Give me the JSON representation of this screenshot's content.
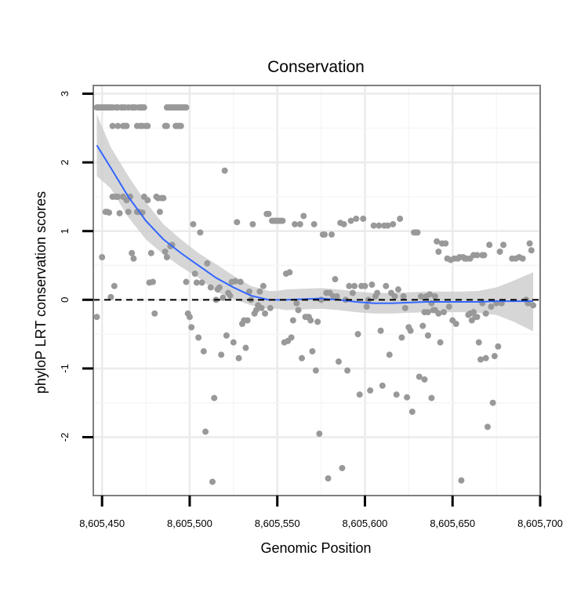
{
  "chart_data": {
    "type": "scatter",
    "title": "Conservation",
    "xlabel": "Genomic Position",
    "ylabel": "phyloP LRT conservation scores",
    "xlim": [
      8605445,
      8605700
    ],
    "ylim": [
      -2.85,
      3.12
    ],
    "x_ticks": [
      8605450,
      8605500,
      8605550,
      8605600,
      8605650,
      8605700
    ],
    "x_tick_labels": [
      "8,605,450",
      "8,605,500",
      "8,605,550",
      "8,605,600",
      "8,605,650",
      "8,605,700"
    ],
    "y_ticks": [
      -2,
      -1,
      0,
      1,
      2,
      3
    ],
    "y_tick_labels": [
      "-2",
      "-1",
      "0",
      "1",
      "2",
      "3"
    ],
    "grid": true,
    "reference_line": {
      "y": 0,
      "style": "dashed",
      "color": "#000000"
    },
    "points_color": "#999999",
    "smooth_color": "#3366ff",
    "ribbon_color": "#cccccc",
    "points": [
      [
        8605447,
        2.8
      ],
      [
        8605448,
        2.8
      ],
      [
        8605449,
        2.8
      ],
      [
        8605450,
        2.8
      ],
      [
        8605451,
        2.8
      ],
      [
        8605452,
        2.8
      ],
      [
        8605453,
        2.8
      ],
      [
        8605454,
        2.8
      ],
      [
        8605455,
        2.8
      ],
      [
        8605456,
        2.8
      ],
      [
        8605458,
        2.8
      ],
      [
        8605459,
        2.8
      ],
      [
        8605461,
        2.8
      ],
      [
        8605462,
        2.8
      ],
      [
        8605463,
        2.8
      ],
      [
        8605465,
        2.8
      ],
      [
        8605467,
        2.8
      ],
      [
        8605468,
        2.8
      ],
      [
        8605469,
        2.8
      ],
      [
        8605471,
        2.8
      ],
      [
        8605472,
        2.8
      ],
      [
        8605473,
        2.8
      ],
      [
        8605474,
        2.8
      ],
      [
        8605487,
        2.8
      ],
      [
        8605488,
        2.8
      ],
      [
        8605489,
        2.8
      ],
      [
        8605490,
        2.8
      ],
      [
        8605491,
        2.8
      ],
      [
        8605492,
        2.8
      ],
      [
        8605493,
        2.8
      ],
      [
        8605494,
        2.8
      ],
      [
        8605495,
        2.8
      ],
      [
        8605496,
        2.8
      ],
      [
        8605497,
        2.8
      ],
      [
        8605498,
        2.8
      ],
      [
        8605456,
        2.53
      ],
      [
        8605459,
        2.53
      ],
      [
        8605462,
        2.53
      ],
      [
        8605463,
        2.53
      ],
      [
        8605464,
        2.53
      ],
      [
        8605470,
        2.53
      ],
      [
        8605472,
        2.53
      ],
      [
        8605473,
        2.53
      ],
      [
        8605475,
        2.53
      ],
      [
        8605476,
        2.53
      ],
      [
        8605486,
        2.53
      ],
      [
        8605487,
        2.53
      ],
      [
        8605492,
        2.53
      ],
      [
        8605493,
        2.53
      ],
      [
        8605494,
        2.53
      ],
      [
        8605495,
        2.53
      ],
      [
        8605447,
        -0.25
      ],
      [
        8605450,
        0.62
      ],
      [
        8605452,
        1.28
      ],
      [
        8605453,
        1.28
      ],
      [
        8605454,
        1.27
      ],
      [
        8605455,
        0.04
      ],
      [
        8605456,
        1.5
      ],
      [
        8605457,
        0.2
      ],
      [
        8605458,
        1.5
      ],
      [
        8605459,
        1.5
      ],
      [
        8605460,
        1.26
      ],
      [
        8605462,
        1.5
      ],
      [
        8605464,
        1.45
      ],
      [
        8605465,
        1.28
      ],
      [
        8605466,
        1.5
      ],
      [
        8605467,
        0.68
      ],
      [
        8605468,
        0.6
      ],
      [
        8605470,
        1.28
      ],
      [
        8605471,
        1.28
      ],
      [
        8605473,
        1.27
      ],
      [
        8605474,
        1.5
      ],
      [
        8605476,
        1.45
      ],
      [
        8605477,
        0.25
      ],
      [
        8605478,
        0.68
      ],
      [
        8605479,
        0.26
      ],
      [
        8605480,
        -0.2
      ],
      [
        8605481,
        1.5
      ],
      [
        8605482,
        1.48
      ],
      [
        8605483,
        1.28
      ],
      [
        8605484,
        1.48
      ],
      [
        8605485,
        1.48
      ],
      [
        8605486,
        0.7
      ],
      [
        8605487,
        0.62
      ],
      [
        8605489,
        0.78
      ],
      [
        8605490,
        0.8
      ],
      [
        8605498,
        0.26
      ],
      [
        8605499,
        -0.2
      ],
      [
        8605500,
        -0.25
      ],
      [
        8605501,
        -0.4
      ],
      [
        8605502,
        1.1
      ],
      [
        8605503,
        0.38
      ],
      [
        8605504,
        0.25
      ],
      [
        8605505,
        -0.55
      ],
      [
        8605506,
        0.98
      ],
      [
        8605507,
        0.25
      ],
      [
        8605508,
        -0.75
      ],
      [
        8605509,
        -1.92
      ],
      [
        8605510,
        0.53
      ],
      [
        8605512,
        0.18
      ],
      [
        8605513,
        -2.65
      ],
      [
        8605514,
        -1.43
      ],
      [
        8605515,
        0.0
      ],
      [
        8605516,
        0.15
      ],
      [
        8605517,
        0.18
      ],
      [
        8605518,
        -0.8
      ],
      [
        8605519,
        0.03
      ],
      [
        8605520,
        1.88
      ],
      [
        8605521,
        -0.52
      ],
      [
        8605522,
        0.1
      ],
      [
        8605523,
        0.06
      ],
      [
        8605524,
        0.26
      ],
      [
        8605525,
        -0.62
      ],
      [
        8605526,
        0.27
      ],
      [
        8605527,
        1.13
      ],
      [
        8605528,
        -0.85
      ],
      [
        8605529,
        0.26
      ],
      [
        8605530,
        -0.35
      ],
      [
        8605531,
        -0.3
      ],
      [
        8605532,
        -0.7
      ],
      [
        8605533,
        -0.3
      ],
      [
        8605534,
        0.12
      ],
      [
        8605535,
        0.0
      ],
      [
        8605536,
        1.1
      ],
      [
        8605537,
        -0.2
      ],
      [
        8605538,
        -0.15
      ],
      [
        8605539,
        -0.08
      ],
      [
        8605540,
        0.12
      ],
      [
        8605541,
        -0.12
      ],
      [
        8605542,
        0.2
      ],
      [
        8605543,
        -0.2
      ],
      [
        8605544,
        1.25
      ],
      [
        8605545,
        1.25
      ],
      [
        8605546,
        -0.12
      ],
      [
        8605547,
        1.15
      ],
      [
        8605548,
        1.15
      ],
      [
        8605549,
        1.15
      ],
      [
        8605550,
        1.15
      ],
      [
        8605551,
        1.15
      ],
      [
        8605552,
        1.15
      ],
      [
        8605553,
        1.15
      ],
      [
        8605554,
        -0.62
      ],
      [
        8605555,
        0.38
      ],
      [
        8605556,
        -0.6
      ],
      [
        8605557,
        0.4
      ],
      [
        8605558,
        -0.55
      ],
      [
        8605559,
        -0.3
      ],
      [
        8605560,
        1.1
      ],
      [
        8605561,
        -0.05
      ],
      [
        8605562,
        -0.15
      ],
      [
        8605563,
        1.1
      ],
      [
        8605564,
        -0.85
      ],
      [
        8605565,
        1.22
      ],
      [
        8605566,
        -0.25
      ],
      [
        8605567,
        -0.25
      ],
      [
        8605568,
        -0.25
      ],
      [
        8605569,
        -0.3
      ],
      [
        8605570,
        -0.75
      ],
      [
        8605571,
        1.1
      ],
      [
        8605572,
        -1.03
      ],
      [
        8605573,
        -0.32
      ],
      [
        8605574,
        -1.95
      ],
      [
        8605575,
        0.0
      ],
      [
        8605576,
        0.95
      ],
      [
        8605577,
        0.95
      ],
      [
        8605578,
        0.1
      ],
      [
        8605579,
        -2.6
      ],
      [
        8605580,
        0.1
      ],
      [
        8605581,
        0.95
      ],
      [
        8605582,
        0.05
      ],
      [
        8605583,
        0.3
      ],
      [
        8605584,
        0.05
      ],
      [
        8605585,
        -0.9
      ],
      [
        8605586,
        1.12
      ],
      [
        8605587,
        -2.45
      ],
      [
        8605588,
        1.1
      ],
      [
        8605589,
        0.0
      ],
      [
        8605590,
        -1.03
      ],
      [
        8605591,
        0.2
      ],
      [
        8605592,
        1.15
      ],
      [
        8605593,
        0.1
      ],
      [
        8605594,
        0.2
      ],
      [
        8605595,
        1.18
      ],
      [
        8605596,
        -0.5
      ],
      [
        8605597,
        -1.38
      ],
      [
        8605598,
        0.2
      ],
      [
        8605599,
        1.18
      ],
      [
        8605600,
        0.2
      ],
      [
        8605601,
        -0.1
      ],
      [
        8605602,
        0.0
      ],
      [
        8605603,
        -1.32
      ],
      [
        8605604,
        0.22
      ],
      [
        8605605,
        1.08
      ],
      [
        8605606,
        0.05
      ],
      [
        8605607,
        0.1
      ],
      [
        8605608,
        1.08
      ],
      [
        8605609,
        -0.45
      ],
      [
        8605610,
        -1.25
      ],
      [
        8605611,
        1.08
      ],
      [
        8605612,
        0.2
      ],
      [
        8605613,
        1.08
      ],
      [
        8605614,
        -0.8
      ],
      [
        8605615,
        0.1
      ],
      [
        8605616,
        1.1
      ],
      [
        8605617,
        0.05
      ],
      [
        8605618,
        -1.38
      ],
      [
        8605619,
        0.15
      ],
      [
        8605620,
        1.18
      ],
      [
        8605621,
        -0.55
      ],
      [
        8605622,
        0.05
      ],
      [
        8605623,
        -0.12
      ],
      [
        8605624,
        -1.42
      ],
      [
        8605625,
        -0.4
      ],
      [
        8605626,
        -0.45
      ],
      [
        8605627,
        -1.63
      ],
      [
        8605628,
        0.98
      ],
      [
        8605629,
        0.98
      ],
      [
        8605630,
        0.98
      ],
      [
        8605631,
        -1.12
      ],
      [
        8605632,
        0.05
      ],
      [
        8605633,
        -0.38
      ],
      [
        8605634,
        -1.16
      ],
      [
        8605635,
        0.05
      ],
      [
        8605636,
        -0.52
      ],
      [
        8605637,
        0.08
      ],
      [
        8605638,
        -1.43
      ],
      [
        8605639,
        -0.15
      ],
      [
        8605640,
        -0.15
      ],
      [
        8605641,
        0.85
      ],
      [
        8605642,
        0.7
      ],
      [
        8605643,
        -0.62
      ],
      [
        8605644,
        0.82
      ],
      [
        8605645,
        -0.18
      ],
      [
        8605646,
        0.82
      ],
      [
        8605647,
        0.6
      ],
      [
        8605648,
        -0.1
      ],
      [
        8605649,
        0.58
      ],
      [
        8605650,
        -0.3
      ],
      [
        8605651,
        0.6
      ],
      [
        8605652,
        -0.35
      ],
      [
        8605653,
        0.6
      ],
      [
        8605654,
        0.62
      ],
      [
        8605655,
        -2.63
      ],
      [
        8605656,
        0.62
      ],
      [
        8605657,
        0.6
      ],
      [
        8605658,
        0.6
      ],
      [
        8605659,
        -0.22
      ],
      [
        8605660,
        0.6
      ],
      [
        8605661,
        -0.3
      ],
      [
        8605662,
        0.65
      ],
      [
        8605663,
        -0.25
      ],
      [
        8605664,
        0.65
      ],
      [
        8605665,
        -0.62
      ],
      [
        8605666,
        -0.87
      ],
      [
        8605667,
        0.65
      ],
      [
        8605668,
        0.65
      ],
      [
        8605669,
        -0.85
      ],
      [
        8605670,
        -1.85
      ],
      [
        8605671,
        0.8
      ],
      [
        8605672,
        -0.1
      ],
      [
        8605673,
        -1.5
      ],
      [
        8605674,
        -0.82
      ],
      [
        8605675,
        -0.05
      ],
      [
        8605676,
        -0.68
      ],
      [
        8605677,
        0.7
      ],
      [
        8605678,
        -0.05
      ],
      [
        8605679,
        0.8
      ],
      [
        8605634,
        -0.18
      ],
      [
        8605636,
        -0.18
      ],
      [
        8605638,
        -0.05
      ],
      [
        8605640,
        0.05
      ],
      [
        8605642,
        -0.2
      ],
      [
        8605660,
        -0.2
      ],
      [
        8605662,
        -0.18
      ],
      [
        8605664,
        -0.25
      ],
      [
        8605667,
        -0.05
      ],
      [
        8605669,
        -0.2
      ],
      [
        8605684,
        0.6
      ],
      [
        8605686,
        0.6
      ],
      [
        8605688,
        0.62
      ],
      [
        8605690,
        0.6
      ],
      [
        8605692,
        0.0
      ],
      [
        8605693,
        -0.05
      ],
      [
        8605694,
        0.82
      ],
      [
        8605695,
        0.72
      ],
      [
        8605696,
        -0.08
      ]
    ],
    "smooth_line": [
      [
        8605447,
        2.25
      ],
      [
        8605455,
        1.92
      ],
      [
        8605465,
        1.5
      ],
      [
        8605475,
        1.15
      ],
      [
        8605485,
        0.88
      ],
      [
        8605495,
        0.68
      ],
      [
        8605505,
        0.5
      ],
      [
        8605515,
        0.32
      ],
      [
        8605525,
        0.18
      ],
      [
        8605535,
        0.06
      ],
      [
        8605545,
        0.0
      ],
      [
        8605550,
        0.0
      ],
      [
        8605555,
        0.0
      ],
      [
        8605565,
        0.01
      ],
      [
        8605575,
        0.02
      ],
      [
        8605585,
        0.0
      ],
      [
        8605595,
        -0.03
      ],
      [
        8605605,
        -0.05
      ],
      [
        8605615,
        -0.05
      ],
      [
        8605625,
        -0.04
      ],
      [
        8605635,
        -0.03
      ],
      [
        8605645,
        -0.03
      ],
      [
        8605655,
        -0.03
      ],
      [
        8605665,
        -0.03
      ],
      [
        8605675,
        -0.02
      ],
      [
        8605685,
        -0.02
      ],
      [
        8605696,
        -0.02
      ]
    ],
    "ribbon_upper": [
      [
        8605447,
        2.7
      ],
      [
        8605455,
        2.22
      ],
      [
        8605465,
        1.8
      ],
      [
        8605475,
        1.42
      ],
      [
        8605485,
        1.1
      ],
      [
        8605495,
        0.88
      ],
      [
        8605505,
        0.68
      ],
      [
        8605515,
        0.52
      ],
      [
        8605525,
        0.35
      ],
      [
        8605535,
        0.2
      ],
      [
        8605545,
        0.13
      ],
      [
        8605550,
        0.13
      ],
      [
        8605555,
        0.15
      ],
      [
        8605565,
        0.16
      ],
      [
        8605575,
        0.17
      ],
      [
        8605585,
        0.15
      ],
      [
        8605595,
        0.12
      ],
      [
        8605605,
        0.1
      ],
      [
        8605615,
        0.1
      ],
      [
        8605625,
        0.11
      ],
      [
        8605635,
        0.12
      ],
      [
        8605645,
        0.12
      ],
      [
        8605655,
        0.12
      ],
      [
        8605665,
        0.13
      ],
      [
        8605675,
        0.18
      ],
      [
        8605685,
        0.28
      ],
      [
        8605696,
        0.4
      ]
    ],
    "ribbon_lower": [
      [
        8605447,
        1.8
      ],
      [
        8605455,
        1.62
      ],
      [
        8605465,
        1.2
      ],
      [
        8605475,
        0.88
      ],
      [
        8605485,
        0.66
      ],
      [
        8605495,
        0.48
      ],
      [
        8605505,
        0.32
      ],
      [
        8605515,
        0.12
      ],
      [
        8605525,
        0.01
      ],
      [
        8605535,
        -0.08
      ],
      [
        8605545,
        -0.13
      ],
      [
        8605550,
        -0.13
      ],
      [
        8605555,
        -0.15
      ],
      [
        8605565,
        -0.14
      ],
      [
        8605575,
        -0.13
      ],
      [
        8605585,
        -0.15
      ],
      [
        8605595,
        -0.18
      ],
      [
        8605605,
        -0.2
      ],
      [
        8605615,
        -0.2
      ],
      [
        8605625,
        -0.19
      ],
      [
        8605635,
        -0.18
      ],
      [
        8605645,
        -0.18
      ],
      [
        8605655,
        -0.18
      ],
      [
        8605665,
        -0.19
      ],
      [
        8605675,
        -0.22
      ],
      [
        8605685,
        -0.32
      ],
      [
        8605696,
        -0.46
      ]
    ]
  }
}
